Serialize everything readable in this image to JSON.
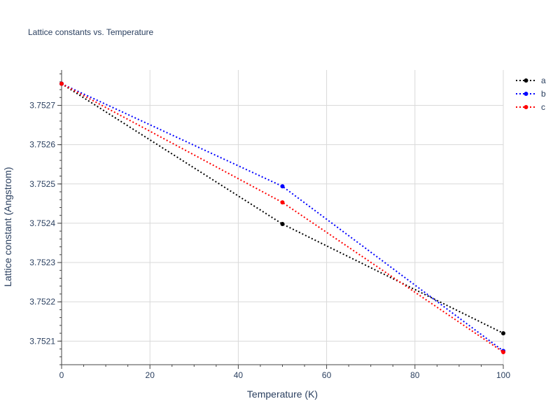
{
  "chart_data": {
    "type": "line",
    "title": "Lattice constants vs. Temperature",
    "xlabel": "Temperature (K)",
    "ylabel": "Lattice constant (Angstrom)",
    "xlim": [
      0,
      100
    ],
    "ylim": [
      3.75204,
      3.75279
    ],
    "x_ticks": [
      0,
      20,
      40,
      60,
      80,
      100
    ],
    "y_ticks": [
      3.7521,
      3.7522,
      3.7523,
      3.7524,
      3.7525,
      3.7526,
      3.7527
    ],
    "y_tick_labels": [
      "3.7521",
      "3.7522",
      "3.7523",
      "3.7524",
      "3.7525",
      "3.7526",
      "3.7527"
    ],
    "grid": true,
    "legend_position": "top-right",
    "line_style": "dotted",
    "series": [
      {
        "name": "a",
        "color": "#000000",
        "x": [
          0,
          50,
          100
        ],
        "y": [
          3.752755,
          3.752398,
          3.75212
        ]
      },
      {
        "name": "b",
        "color": "#0000ff",
        "x": [
          0,
          50,
          100
        ],
        "y": [
          3.752755,
          3.752494,
          3.752075
        ]
      },
      {
        "name": "c",
        "color": "#ff0000",
        "x": [
          0,
          50,
          100
        ],
        "y": [
          3.752755,
          3.752453,
          3.752072
        ]
      }
    ]
  }
}
